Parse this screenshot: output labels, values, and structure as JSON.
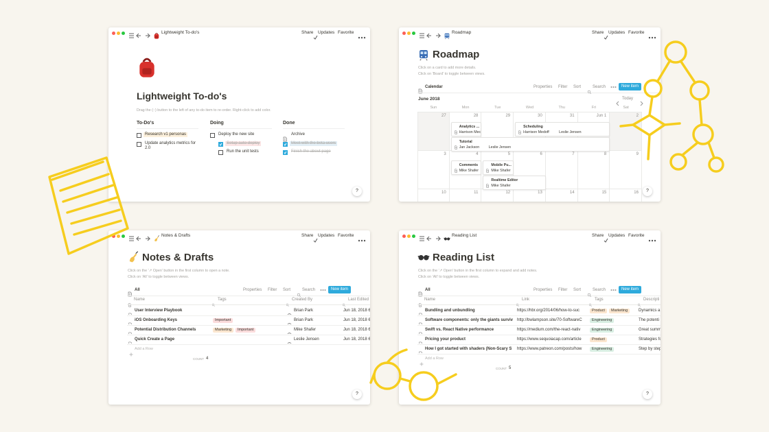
{
  "toolbar_actions": [
    "Share",
    "Updates",
    "Favorite"
  ],
  "view_controls": [
    "Properties",
    "Filter",
    "Sort",
    "Search"
  ],
  "new_item": "New item",
  "help": "?",
  "add_row": "Add a Row",
  "count_label": "COUNT",
  "todo": {
    "breadcrumb": "Lightweight To-do's",
    "title": "Lightweight To-do's",
    "hint": "Drag the (::) button to the left of any to-do item to re-order. Right-click to add color.",
    "columns": [
      {
        "heading": "To-Do's",
        "items": [
          {
            "text": "Research v1 personas",
            "checked": false,
            "highlight": "#fcf0dc"
          },
          {
            "text": "Update analytics metrics for 2.0",
            "checked": false
          }
        ]
      },
      {
        "heading": "Doing",
        "items": [
          {
            "text": "Deploy the new site",
            "checked": false
          },
          {
            "text": "Setup auto deploy",
            "checked": true,
            "indent": 1,
            "highlight": "#fbe4e4"
          },
          {
            "text": "Run the unit tests",
            "checked": false,
            "indent": 1
          }
        ]
      },
      {
        "heading": "Done",
        "items": [
          {
            "text": "Archive",
            "kind": "page"
          },
          {
            "text": "Meet with the beta users",
            "checked": true,
            "highlight": "#e2eef5"
          },
          {
            "text": "Finish the about page",
            "checked": true
          }
        ]
      }
    ]
  },
  "roadmap": {
    "breadcrumb": "Roadmap",
    "title": "Roadmap",
    "hints": [
      "Click on a card to add more details.",
      "Click on 'Board' to toggle between views."
    ],
    "view": "Calendar",
    "month": "June 2018",
    "today": "Today",
    "weekdays": [
      "Sun",
      "Mon",
      "Tue",
      "Wed",
      "Thu",
      "Fri",
      "Sat"
    ],
    "weeks": [
      [
        "27",
        "28",
        "29",
        "30",
        "31",
        "Jun 1",
        "2"
      ],
      [
        "3",
        "4",
        "5",
        "6",
        "7",
        "8",
        "9"
      ],
      [
        "10",
        "11",
        "12",
        "13",
        "14",
        "15",
        "16"
      ]
    ],
    "events": [
      {
        "title": "Analytics ...",
        "people": [
          "Harrison Mec"
        ]
      },
      {
        "title": "Scheduling",
        "people": [
          "Harrison Medoff",
          "Leslie Jensen"
        ]
      },
      {
        "title": "Tutorial",
        "people": [
          "Jan Jackson",
          "Leslie Jensen"
        ]
      },
      {
        "title": "Comments",
        "people": [
          "Mike Shafer"
        ]
      },
      {
        "title": "Mobile Pu...",
        "people": [
          "Mike Shafer"
        ]
      },
      {
        "title": "Realtime Editor",
        "people": [
          "Mike Shafer"
        ]
      }
    ]
  },
  "notes": {
    "breadcrumb": "Notes & Drafts",
    "title": "Notes & Drafts",
    "hints": [
      "Click on the '↗ Open' button in the first column to open a note.",
      "Click on 'All' to toggle between views."
    ],
    "view": "All",
    "columns": [
      "Name",
      "Tags",
      "Created By",
      "Last Edited"
    ],
    "rows": [
      {
        "name": "User Interview Playbook",
        "tags": [],
        "created_by": "Brian Park",
        "edited": "Jun 18, 2018 6"
      },
      {
        "name": "iOS Onboarding Keys",
        "tags": [
          {
            "label": "Important",
            "color": "#fbdcdc"
          }
        ],
        "created_by": "Brian Park",
        "edited": "Jun 18, 2018 6"
      },
      {
        "name": "Potential Distribution Channels",
        "tags": [
          {
            "label": "Marketing",
            "color": "#fbe6cf"
          },
          {
            "label": "Important",
            "color": "#fbdcdc"
          }
        ],
        "created_by": "Mike Shafer",
        "edited": "Jun 18, 2018 6"
      },
      {
        "name": "Quick Create a Page",
        "tags": [],
        "created_by": "Leslie Jensen",
        "edited": "Jun 18, 2018 6"
      }
    ],
    "count": 4
  },
  "reading": {
    "breadcrumb": "Reading List",
    "title": "Reading List",
    "hints": [
      "Click on the '↗ Open' button in the first column to expand and add notes.",
      "Click on 'All' to toggle between views."
    ],
    "view": "All",
    "columns": [
      "Name",
      "Link",
      "Tags",
      "Descripti"
    ],
    "rows": [
      {
        "name": "Bundling and unbundling",
        "link": "https://hbr.org/2014/06/how-to-suc",
        "tags": [
          {
            "label": "Product",
            "color": "#fbe6cf"
          },
          {
            "label": "Marketing",
            "color": "#fbe6cf"
          }
        ],
        "description": "Dynamics a"
      },
      {
        "name": "Software components: only the giants surviv",
        "link": "http://bwlampson.site/70-SoftwareC",
        "tags": [
          {
            "label": "Engineering",
            "color": "#d9efe3"
          }
        ],
        "description": "The potenti"
      },
      {
        "name": "Swift vs. React Native performance",
        "link": "https://medium.com/the-react-nativ",
        "tags": [
          {
            "label": "Engineering",
            "color": "#d9efe3"
          }
        ],
        "description": "Great summ"
      },
      {
        "name": "Pricing your product",
        "link": "https://www.sequoiacap.com/article",
        "tags": [
          {
            "label": "Product",
            "color": "#fbe6cf"
          }
        ],
        "description": "Strategies fo"
      },
      {
        "name": "How I got started with shaders (Non-Scary S",
        "link": "https://www.patreon.com/posts/how",
        "tags": [
          {
            "label": "Engineering",
            "color": "#d9efe3"
          }
        ],
        "description": "Step by step"
      }
    ],
    "count": 5
  }
}
